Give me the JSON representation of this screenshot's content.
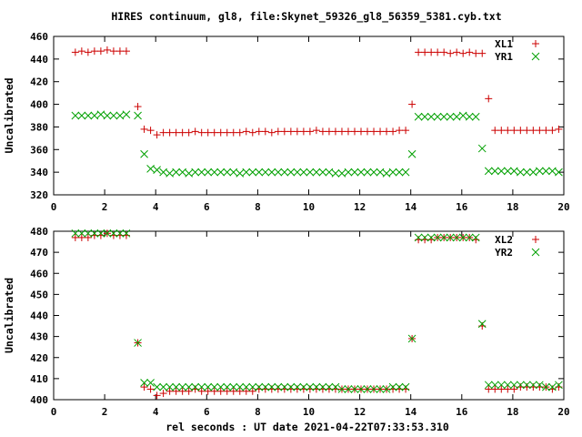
{
  "chart_data": [
    {
      "type": "scatter",
      "title": "HIRES continuum, gl8, file:Skynet_59326_gl8_56359_5381.cyb.txt",
      "xlabel": "",
      "ylabel": "Uncalibrated",
      "xlim": [
        0,
        20
      ],
      "ylim": [
        320,
        460
      ],
      "xticks": [
        0,
        2,
        4,
        6,
        8,
        10,
        12,
        14,
        16,
        18,
        20
      ],
      "yticks": [
        320,
        340,
        360,
        380,
        400,
        420,
        440,
        460
      ],
      "grid": false,
      "legend": "top-right",
      "series": [
        {
          "name": "XL1",
          "marker": "plus",
          "color": "#cc0000",
          "x": [
            0.85,
            1.1,
            1.35,
            1.6,
            1.85,
            2.1,
            2.35,
            2.6,
            2.85,
            3.3,
            3.55,
            3.8,
            4.05,
            4.3,
            4.55,
            4.8,
            5.05,
            5.3,
            5.55,
            5.8,
            6.05,
            6.3,
            6.55,
            6.8,
            7.05,
            7.3,
            7.55,
            7.8,
            8.05,
            8.3,
            8.55,
            8.8,
            9.05,
            9.3,
            9.55,
            9.8,
            10.05,
            10.3,
            10.55,
            10.8,
            11.05,
            11.3,
            11.55,
            11.8,
            12.05,
            12.3,
            12.55,
            12.8,
            13.05,
            13.3,
            13.55,
            13.8,
            14.05,
            14.3,
            14.55,
            14.8,
            15.05,
            15.3,
            15.55,
            15.8,
            16.05,
            16.3,
            16.55,
            16.8,
            17.05,
            17.3,
            17.55,
            17.8,
            18.05,
            18.3,
            18.55,
            18.8,
            19.05,
            19.3,
            19.55,
            19.8
          ],
          "y": [
            446,
            447,
            446,
            447,
            447,
            448,
            447,
            447,
            447,
            398,
            378,
            377,
            373,
            375,
            375,
            375,
            375,
            375,
            376,
            375,
            375,
            375,
            375,
            375,
            375,
            375,
            376,
            375,
            376,
            376,
            375,
            376,
            376,
            376,
            376,
            376,
            376,
            377,
            376,
            376,
            376,
            376,
            376,
            376,
            376,
            376,
            376,
            376,
            376,
            376,
            377,
            377,
            400,
            446,
            446,
            446,
            446,
            446,
            445,
            446,
            445,
            446,
            445,
            445,
            405,
            377,
            377,
            377,
            377,
            377,
            377,
            377,
            377,
            377,
            377,
            378
          ]
        },
        {
          "name": "YR1",
          "marker": "cross",
          "color": "#00a000",
          "x": [
            0.85,
            1.1,
            1.35,
            1.6,
            1.85,
            2.1,
            2.35,
            2.6,
            2.85,
            3.3,
            3.55,
            3.8,
            4.05,
            4.3,
            4.55,
            4.8,
            5.05,
            5.3,
            5.55,
            5.8,
            6.05,
            6.3,
            6.55,
            6.8,
            7.05,
            7.3,
            7.55,
            7.8,
            8.05,
            8.3,
            8.55,
            8.8,
            9.05,
            9.3,
            9.55,
            9.8,
            10.05,
            10.3,
            10.55,
            10.8,
            11.05,
            11.3,
            11.55,
            11.8,
            12.05,
            12.3,
            12.55,
            12.8,
            13.05,
            13.3,
            13.55,
            13.8,
            14.05,
            14.3,
            14.55,
            14.8,
            15.05,
            15.3,
            15.55,
            15.8,
            16.05,
            16.3,
            16.55,
            16.8,
            17.05,
            17.3,
            17.55,
            17.8,
            18.05,
            18.3,
            18.55,
            18.8,
            19.05,
            19.3,
            19.55,
            19.8
          ],
          "y": [
            390,
            390,
            390,
            390,
            391,
            390,
            390,
            390,
            391,
            390,
            356,
            343,
            342,
            340,
            339,
            340,
            340,
            339,
            340,
            340,
            340,
            340,
            340,
            340,
            340,
            339,
            340,
            340,
            340,
            340,
            340,
            340,
            340,
            340,
            340,
            340,
            340,
            340,
            340,
            340,
            339,
            339,
            340,
            340,
            340,
            340,
            340,
            340,
            339,
            340,
            340,
            340,
            356,
            389,
            389,
            389,
            389,
            389,
            389,
            389,
            390,
            389,
            389,
            361,
            341,
            341,
            341,
            341,
            341,
            340,
            340,
            340,
            341,
            341,
            341,
            340
          ]
        }
      ]
    },
    {
      "type": "scatter",
      "title": "",
      "xlabel": "rel seconds : UT date 2021-04-22T07:33:53.310",
      "ylabel": "Uncalibrated",
      "xlim": [
        0,
        20
      ],
      "ylim": [
        400,
        480
      ],
      "xticks": [
        0,
        2,
        4,
        6,
        8,
        10,
        12,
        14,
        16,
        18,
        20
      ],
      "yticks": [
        400,
        410,
        420,
        430,
        440,
        450,
        460,
        470,
        480
      ],
      "grid": false,
      "legend": "top-right",
      "series": [
        {
          "name": "XL2",
          "marker": "plus",
          "color": "#cc0000",
          "x": [
            0.85,
            1.1,
            1.35,
            1.6,
            1.85,
            2.1,
            2.35,
            2.6,
            2.85,
            3.3,
            3.55,
            3.8,
            4.05,
            4.3,
            4.55,
            4.8,
            5.05,
            5.3,
            5.55,
            5.8,
            6.05,
            6.3,
            6.55,
            6.8,
            7.05,
            7.3,
            7.55,
            7.8,
            8.05,
            8.3,
            8.55,
            8.8,
            9.05,
            9.3,
            9.55,
            9.8,
            10.05,
            10.3,
            10.55,
            10.8,
            11.05,
            11.3,
            11.55,
            11.8,
            12.05,
            12.3,
            12.55,
            12.8,
            13.05,
            13.3,
            13.55,
            13.8,
            14.05,
            14.3,
            14.55,
            14.8,
            15.05,
            15.3,
            15.55,
            15.8,
            16.05,
            16.3,
            16.55,
            16.8,
            17.05,
            17.3,
            17.55,
            17.8,
            18.05,
            18.3,
            18.55,
            18.8,
            19.05,
            19.3,
            19.55,
            19.8
          ],
          "y": [
            477,
            477,
            477,
            478,
            478,
            479,
            478,
            478,
            478,
            427,
            406,
            405,
            402,
            403,
            404,
            404,
            404,
            404,
            405,
            404,
            404,
            404,
            404,
            404,
            404,
            404,
            404,
            404,
            405,
            405,
            405,
            405,
            405,
            405,
            405,
            405,
            405,
            405,
            405,
            405,
            405,
            405,
            405,
            405,
            405,
            405,
            405,
            405,
            405,
            405,
            405,
            405,
            429,
            476,
            476,
            476,
            477,
            477,
            477,
            477,
            477,
            477,
            476,
            435,
            405,
            405,
            405,
            405,
            405,
            406,
            406,
            406,
            406,
            406,
            405,
            406
          ]
        },
        {
          "name": "YR2",
          "marker": "cross",
          "color": "#00a000",
          "x": [
            0.85,
            1.1,
            1.35,
            1.6,
            1.85,
            2.1,
            2.35,
            2.6,
            2.85,
            3.3,
            3.55,
            3.8,
            4.05,
            4.3,
            4.55,
            4.8,
            5.05,
            5.3,
            5.55,
            5.8,
            6.05,
            6.3,
            6.55,
            6.8,
            7.05,
            7.3,
            7.55,
            7.8,
            8.05,
            8.3,
            8.55,
            8.8,
            9.05,
            9.3,
            9.55,
            9.8,
            10.05,
            10.3,
            10.55,
            10.8,
            11.05,
            11.3,
            11.55,
            11.8,
            12.05,
            12.3,
            12.55,
            12.8,
            13.05,
            13.3,
            13.55,
            13.8,
            14.05,
            14.3,
            14.55,
            14.8,
            15.05,
            15.3,
            15.55,
            15.8,
            16.05,
            16.3,
            16.55,
            16.8,
            17.05,
            17.3,
            17.55,
            17.8,
            18.05,
            18.3,
            18.55,
            18.8,
            19.05,
            19.3,
            19.55,
            19.8
          ],
          "y": [
            479,
            479,
            479,
            479,
            479,
            479,
            479,
            479,
            479,
            427,
            408,
            408,
            406,
            406,
            406,
            406,
            406,
            406,
            406,
            406,
            406,
            406,
            406,
            406,
            406,
            406,
            406,
            406,
            406,
            406,
            406,
            406,
            406,
            406,
            406,
            406,
            406,
            406,
            406,
            406,
            406,
            405,
            405,
            405,
            405,
            405,
            405,
            405,
            405,
            406,
            406,
            406,
            429,
            477,
            477,
            477,
            477,
            477,
            477,
            477,
            477,
            477,
            477,
            436,
            407,
            407,
            407,
            407,
            407,
            407,
            407,
            407,
            407,
            406,
            406,
            407
          ]
        }
      ]
    }
  ]
}
